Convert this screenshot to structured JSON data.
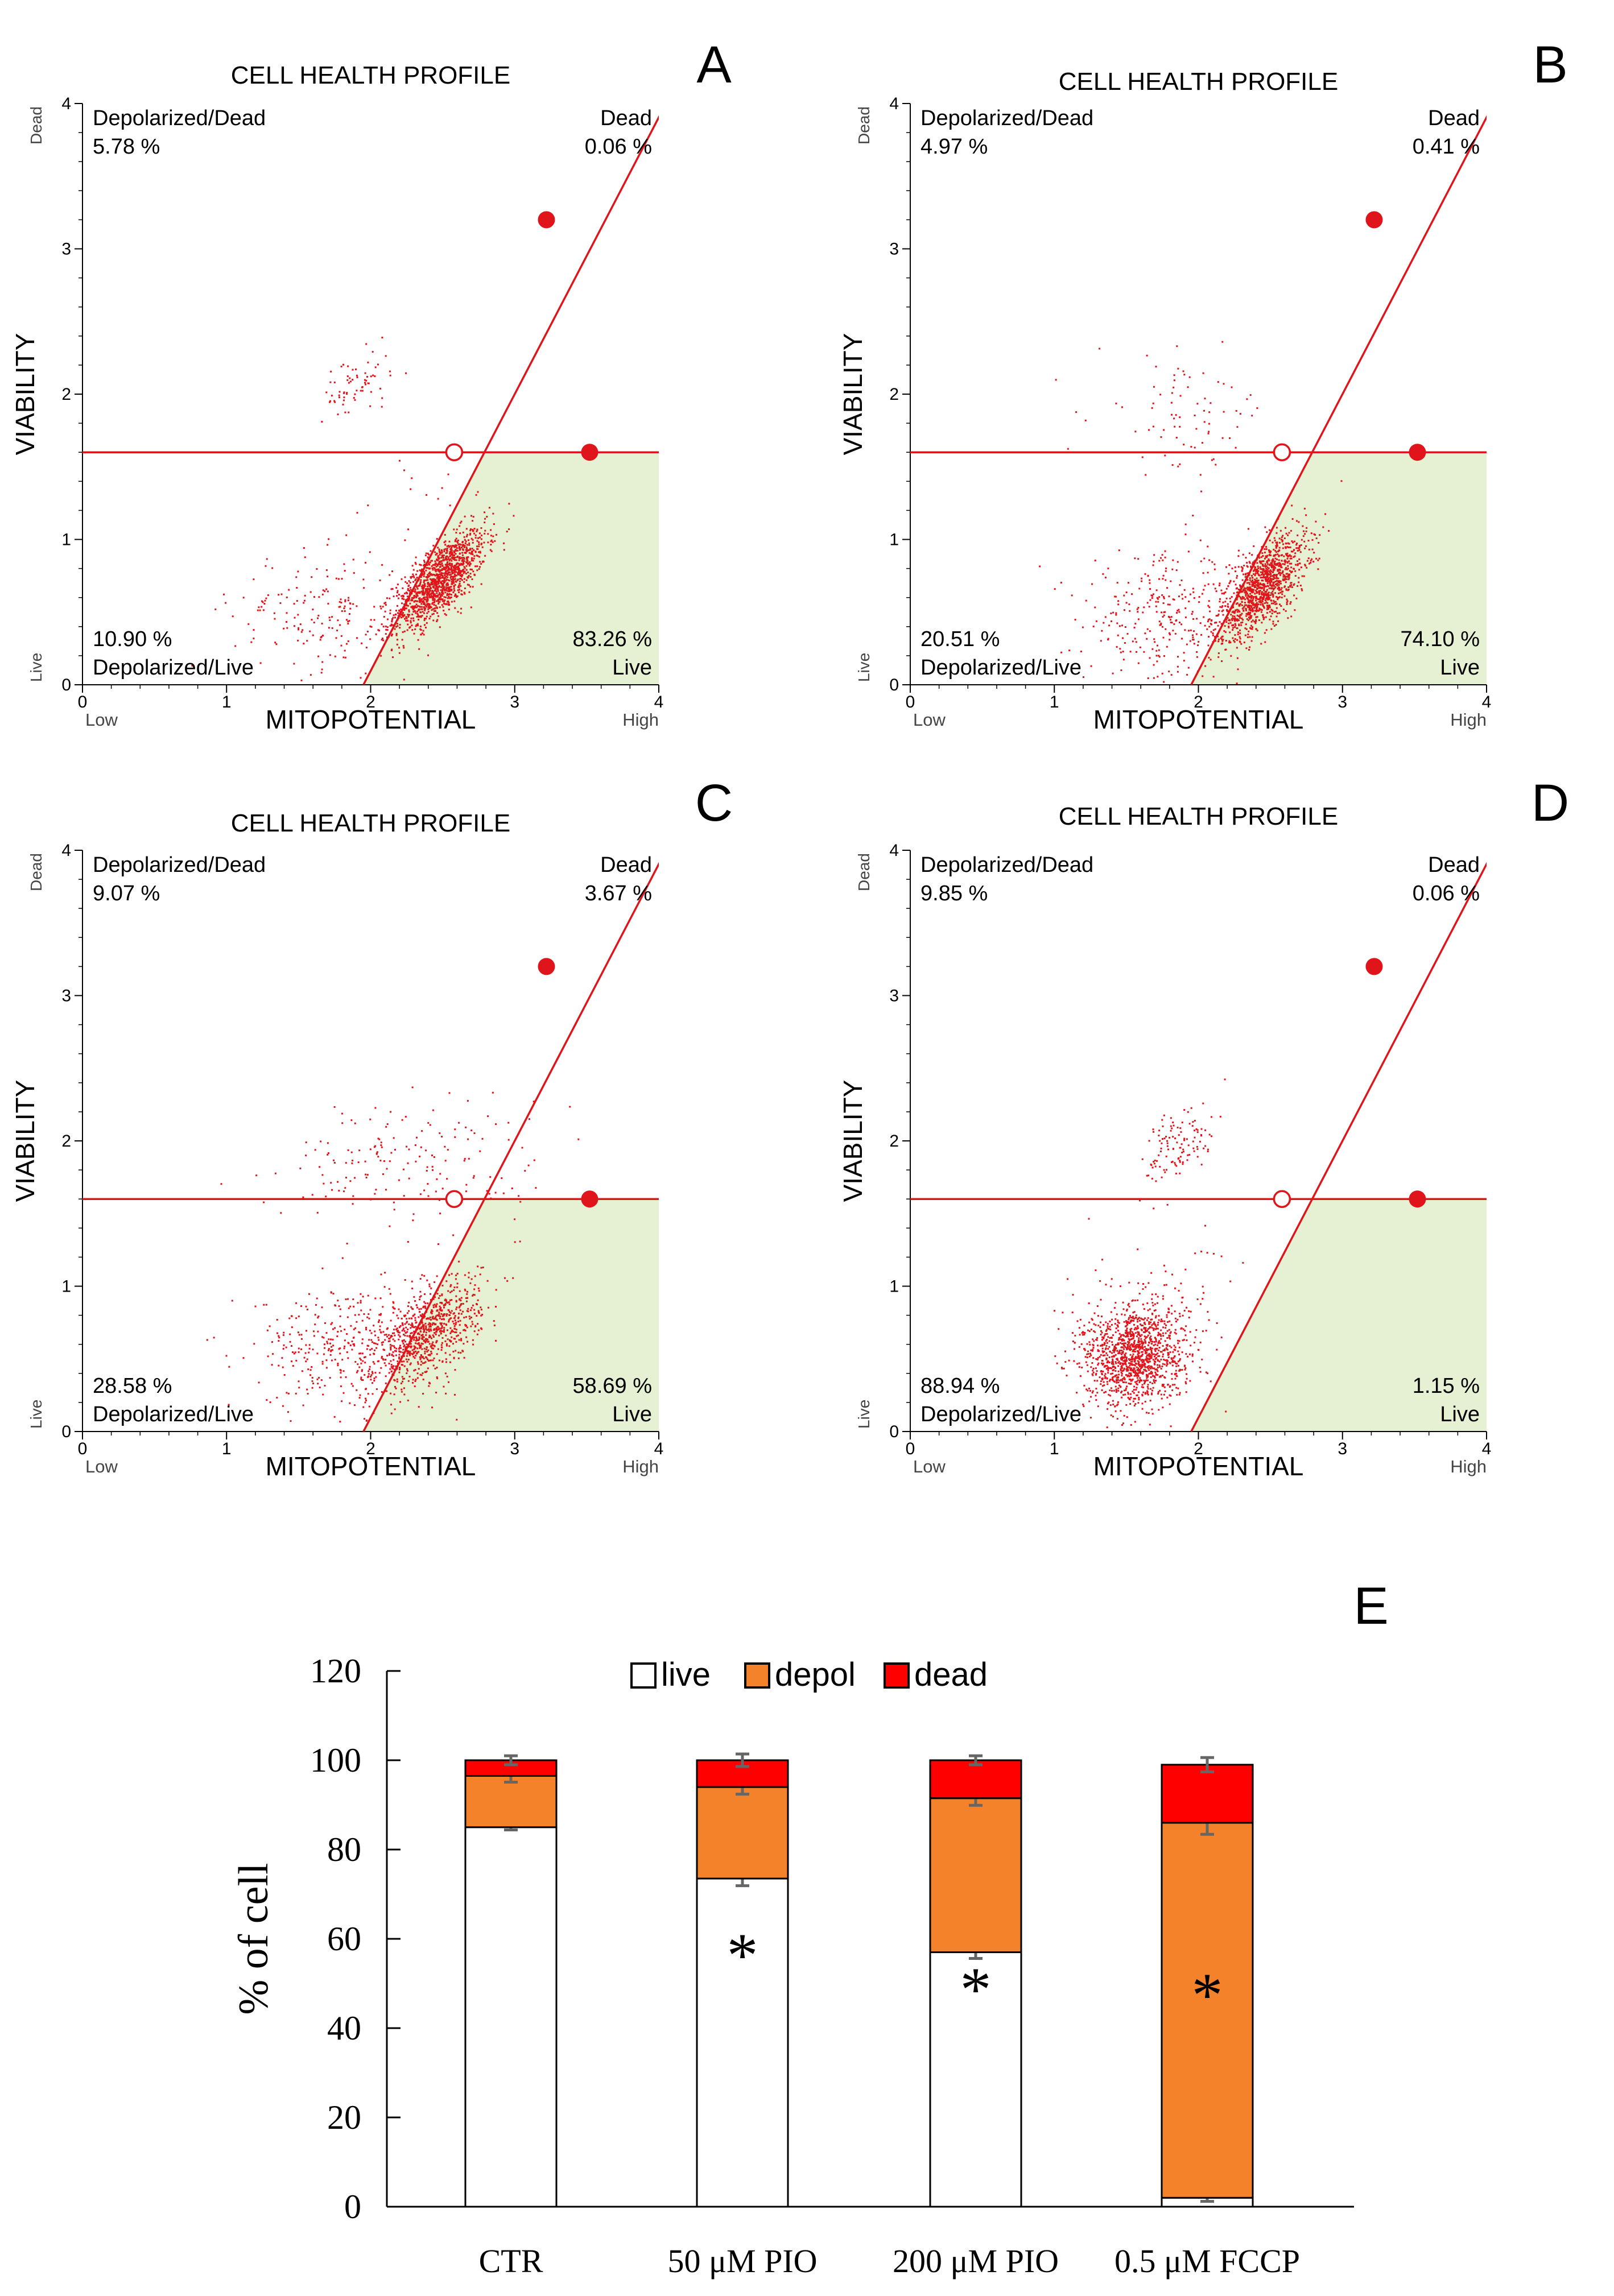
{
  "chart_data": [
    {
      "type": "scatter",
      "panel_label": "A",
      "title": "CELL HEALTH PROFILE",
      "xlabel": "MITOPOTENTIAL",
      "ylabel": "VIABILITY",
      "xlim": [
        0,
        4
      ],
      "ylim": [
        0,
        4
      ],
      "x_ticks": [
        "0",
        "1",
        "2",
        "3",
        "4"
      ],
      "y_ticks": [
        "0",
        "1",
        "2",
        "3",
        "4"
      ],
      "x_end_labels": {
        "low": "Low",
        "high": "High"
      },
      "y_end_labels": {
        "low": "Live",
        "high": "Dead"
      },
      "gates": {
        "horizontal_y": 1.6,
        "diagonal": [
          [
            1.95,
            0
          ],
          [
            4.05,
            4
          ]
        ],
        "handles": [
          [
            3.22,
            3.2
          ],
          [
            3.52,
            1.6
          ]
        ],
        "center": [
          2.58,
          1.6
        ]
      },
      "quadrants": {
        "depolarized_dead": {
          "label": "Depolarized/Dead",
          "value": "5.78 %"
        },
        "dead": {
          "label": "Dead",
          "value": "0.06 %"
        },
        "depolarized_live": {
          "label": "Depolarized/Live",
          "value": "10.90 %"
        },
        "live": {
          "label": "Live",
          "value": "83.26 %"
        }
      },
      "clusters": [
        {
          "x": 2.48,
          "y": 0.72,
          "sx": 0.16,
          "sy": 0.17,
          "n": 1350,
          "rho": 0.72
        },
        {
          "x": 1.65,
          "y": 0.5,
          "sx": 0.3,
          "sy": 0.2,
          "n": 170,
          "rho": 0
        },
        {
          "x": 1.9,
          "y": 2.05,
          "sx": 0.12,
          "sy": 0.12,
          "n": 70,
          "rho": 0.3
        },
        {
          "x": 2.3,
          "y": 1.3,
          "sx": 0.3,
          "sy": 0.2,
          "n": 18,
          "rho": 0.3
        }
      ]
    },
    {
      "type": "scatter",
      "panel_label": "B",
      "title": "CELL HEALTH PROFILE",
      "xlabel": "MITOPOTENTIAL",
      "ylabel": "VIABILITY",
      "xlim": [
        0,
        4
      ],
      "ylim": [
        0,
        4
      ],
      "x_ticks": [
        "0",
        "1",
        "2",
        "3",
        "4"
      ],
      "y_ticks": [
        "0",
        "1",
        "2",
        "3",
        "4"
      ],
      "x_end_labels": {
        "low": "Low",
        "high": "High"
      },
      "y_end_labels": {
        "low": "Live",
        "high": "Dead"
      },
      "gates": {
        "horizontal_y": 1.6,
        "diagonal": [
          [
            1.95,
            0
          ],
          [
            4.05,
            4
          ]
        ],
        "handles": [
          [
            3.22,
            3.2
          ],
          [
            3.52,
            1.6
          ]
        ],
        "center": [
          2.58,
          1.6
        ]
      },
      "quadrants": {
        "depolarized_dead": {
          "label": "Depolarized/Dead",
          "value": "4.97 %"
        },
        "dead": {
          "label": "Dead",
          "value": "0.41 %"
        },
        "depolarized_live": {
          "label": "Depolarized/Live",
          "value": "20.51 %"
        },
        "live": {
          "label": "Live",
          "value": "74.10 %"
        }
      },
      "clusters": [
        {
          "x": 2.45,
          "y": 0.68,
          "sx": 0.15,
          "sy": 0.18,
          "n": 1150,
          "rho": 0.65
        },
        {
          "x": 1.8,
          "y": 0.45,
          "sx": 0.3,
          "sy": 0.22,
          "n": 330,
          "rho": 0
        },
        {
          "x": 1.9,
          "y": 1.85,
          "sx": 0.3,
          "sy": 0.2,
          "n": 80,
          "rho": 0
        }
      ]
    },
    {
      "type": "scatter",
      "panel_label": "C",
      "title": "CELL HEALTH PROFILE",
      "xlabel": "MITOPOTENTIAL",
      "ylabel": "VIABILITY",
      "xlim": [
        0,
        4
      ],
      "ylim": [
        0,
        4
      ],
      "x_ticks": [
        "0",
        "1",
        "2",
        "3",
        "4"
      ],
      "y_ticks": [
        "0",
        "1",
        "2",
        "3",
        "4"
      ],
      "x_end_labels": {
        "low": "Low",
        "high": "High"
      },
      "y_end_labels": {
        "low": "Live",
        "high": "Dead"
      },
      "gates": {
        "horizontal_y": 1.6,
        "diagonal": [
          [
            1.95,
            0
          ],
          [
            4.05,
            4
          ]
        ],
        "handles": [
          [
            3.22,
            3.2
          ],
          [
            3.52,
            1.6
          ]
        ],
        "center": [
          2.58,
          1.6
        ]
      },
      "quadrants": {
        "depolarized_dead": {
          "label": "Depolarized/Dead",
          "value": "9.07 %"
        },
        "dead": {
          "label": "Dead",
          "value": "3.67 %"
        },
        "depolarized_live": {
          "label": "Depolarized/Live",
          "value": "28.58 %"
        },
        "live": {
          "label": "Live",
          "value": "58.69 %"
        }
      },
      "clusters": [
        {
          "x": 2.4,
          "y": 0.68,
          "sx": 0.18,
          "sy": 0.18,
          "n": 800,
          "rho": 0.55
        },
        {
          "x": 1.85,
          "y": 0.58,
          "sx": 0.32,
          "sy": 0.2,
          "n": 380,
          "rho": 0
        },
        {
          "x": 2.2,
          "y": 1.85,
          "sx": 0.42,
          "sy": 0.2,
          "n": 150,
          "rho": 0
        },
        {
          "x": 2.9,
          "y": 1.95,
          "sx": 0.22,
          "sy": 0.25,
          "n": 25,
          "rho": 0
        }
      ]
    },
    {
      "type": "scatter",
      "panel_label": "D",
      "title": "CELL HEALTH PROFILE",
      "xlabel": "MITOPOTENTIAL",
      "ylabel": "VIABILITY",
      "xlim": [
        0,
        4
      ],
      "ylim": [
        0,
        4
      ],
      "x_ticks": [
        "0",
        "1",
        "2",
        "3",
        "4"
      ],
      "y_ticks": [
        "0",
        "1",
        "2",
        "3",
        "4"
      ],
      "x_end_labels": {
        "low": "Low",
        "high": "High"
      },
      "y_end_labels": {
        "low": "Live",
        "high": "Dead"
      },
      "gates": {
        "horizontal_y": 1.6,
        "diagonal": [
          [
            1.95,
            0
          ],
          [
            4.05,
            4
          ]
        ],
        "handles": [
          [
            3.22,
            3.2
          ],
          [
            3.52,
            1.6
          ]
        ],
        "center": [
          2.58,
          1.6
        ]
      },
      "quadrants": {
        "depolarized_dead": {
          "label": "Depolarized/Dead",
          "value": "9.85 %"
        },
        "dead": {
          "label": "Dead",
          "value": "0.06 %"
        },
        "depolarized_live": {
          "label": "Depolarized/Live",
          "value": "88.94 %"
        },
        "live": {
          "label": "Live",
          "value": "1.15 %"
        }
      },
      "clusters": [
        {
          "x": 1.55,
          "y": 0.52,
          "sx": 0.17,
          "sy": 0.17,
          "n": 1250,
          "rho": 0.1
        },
        {
          "x": 1.65,
          "y": 0.7,
          "sx": 0.28,
          "sy": 0.3,
          "n": 150,
          "rho": 0
        },
        {
          "x": 1.88,
          "y": 1.98,
          "sx": 0.13,
          "sy": 0.15,
          "n": 120,
          "rho": 0.45
        }
      ]
    },
    {
      "type": "bar",
      "stacked": true,
      "panel_label": "E",
      "ylabel": "% of cell",
      "ylim": [
        0,
        120
      ],
      "y_ticks": [
        "0",
        "20",
        "40",
        "60",
        "80",
        "100",
        "120"
      ],
      "categories": [
        "CTR",
        "50 μM PIO",
        "200 μM PIO",
        "0.5 μM FCCP"
      ],
      "series": [
        {
          "name": "live",
          "color": "#ffffff",
          "values": [
            85,
            73.5,
            57,
            2
          ],
          "errors": [
            0.6,
            1.6,
            1.4,
            0.8
          ]
        },
        {
          "name": "depol",
          "color": "#f4822b",
          "values": [
            11.5,
            20.5,
            34.5,
            84
          ],
          "errors": [
            1.4,
            1.6,
            1.6,
            2.6
          ]
        },
        {
          "name": "dead",
          "color": "#ff0000",
          "values": [
            3.5,
            6,
            8.5,
            13
          ],
          "errors": [
            1.0,
            1.4,
            1.0,
            1.6
          ]
        }
      ],
      "significance": [
        "",
        "*",
        "*",
        "*"
      ],
      "significance_marks": [
        {
          "category": "50 μM PIO",
          "symbol": "*"
        },
        {
          "category": "200 μM PIO",
          "symbol": "*"
        },
        {
          "category": "0.5 μM FCCP",
          "symbol": "*"
        }
      ]
    }
  ]
}
